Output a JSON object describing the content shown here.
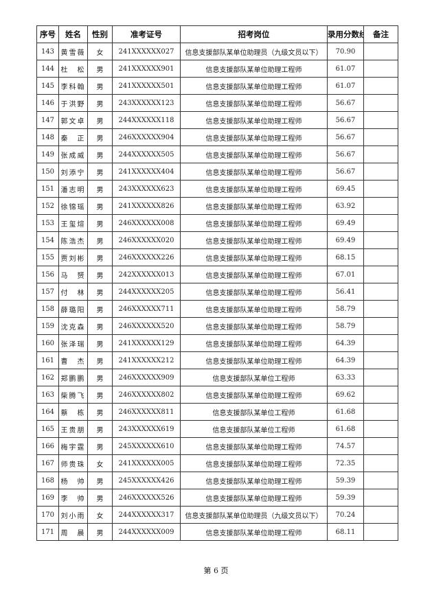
{
  "headers": [
    "序号",
    "姓名",
    "性别",
    "准考证号",
    "招考岗位",
    "录用分数线",
    "备注"
  ],
  "rows": [
    [
      "143",
      "黄雪薇",
      "女",
      "241XXXXXX027",
      "信息支援部队某单位助理员（九级文员以下）",
      "70.90",
      ""
    ],
    [
      "144",
      "杜　松",
      "男",
      "241XXXXXX901",
      "信息支援部队某单位助理工程师",
      "61.07",
      ""
    ],
    [
      "145",
      "李科翰",
      "男",
      "241XXXXXX501",
      "信息支援部队某单位助理工程师",
      "61.07",
      ""
    ],
    [
      "146",
      "于洪野",
      "男",
      "243XXXXXX123",
      "信息支援部队某单位助理工程师",
      "56.67",
      ""
    ],
    [
      "147",
      "郭文卓",
      "男",
      "244XXXXXX118",
      "信息支援部队某单位助理工程师",
      "56.67",
      ""
    ],
    [
      "148",
      "秦　正",
      "男",
      "246XXXXXX904",
      "信息支援部队某单位助理工程师",
      "56.67",
      ""
    ],
    [
      "149",
      "张成威",
      "男",
      "244XXXXXX505",
      "信息支援部队某单位助理工程师",
      "56.67",
      ""
    ],
    [
      "150",
      "刘添宁",
      "男",
      "241XXXXXX404",
      "信息支援部队某单位助理工程师",
      "56.67",
      ""
    ],
    [
      "151",
      "潘志明",
      "男",
      "243XXXXXX623",
      "信息支援部队某单位助理工程师",
      "69.45",
      ""
    ],
    [
      "152",
      "徐锦瑶",
      "男",
      "241XXXXXX826",
      "信息支援部队某单位助理工程师",
      "63.92",
      ""
    ],
    [
      "153",
      "王玺煊",
      "男",
      "246XXXXXX008",
      "信息支援部队某单位助理工程师",
      "69.49",
      ""
    ],
    [
      "154",
      "陈浩杰",
      "男",
      "246XXXXXX020",
      "信息支援部队某单位助理工程师",
      "69.49",
      ""
    ],
    [
      "155",
      "贾刘彬",
      "男",
      "246XXXXXX226",
      "信息支援部队某单位助理工程师",
      "68.15",
      ""
    ],
    [
      "156",
      "马　赟",
      "男",
      "242XXXXXX013",
      "信息支援部队某单位助理工程师",
      "67.01",
      ""
    ],
    [
      "157",
      "付　林",
      "男",
      "244XXXXXX205",
      "信息支援部队某单位助理工程师",
      "56.41",
      ""
    ],
    [
      "158",
      "薛璐阳",
      "男",
      "246XXXXXX711",
      "信息支援部队某单位助理工程师",
      "58.79",
      ""
    ],
    [
      "159",
      "沈克森",
      "男",
      "246XXXXXX520",
      "信息支援部队某单位助理工程师",
      "58.79",
      ""
    ],
    [
      "160",
      "张泽瑞",
      "男",
      "241XXXXXX129",
      "信息支援部队某单位助理工程师",
      "64.39",
      ""
    ],
    [
      "161",
      "曹　杰",
      "男",
      "241XXXXXX212",
      "信息支援部队某单位助理工程师",
      "64.39",
      ""
    ],
    [
      "162",
      "郑鹏鹏",
      "男",
      "246XXXXXX909",
      "信息支援部队某单位工程师",
      "63.33",
      ""
    ],
    [
      "163",
      "柴腾飞",
      "男",
      "246XXXXXX802",
      "信息支援部队某单位助理工程师",
      "69.62",
      ""
    ],
    [
      "164",
      "蔡　栋",
      "男",
      "246XXXXXX811",
      "信息支援部队某单位工程师",
      "61.68",
      ""
    ],
    [
      "165",
      "王贵朋",
      "男",
      "243XXXXXX619",
      "信息支援部队某单位工程师",
      "61.68",
      ""
    ],
    [
      "166",
      "梅宇霆",
      "男",
      "245XXXXXX610",
      "信息支援部队某单位助理工程师",
      "74.57",
      ""
    ],
    [
      "167",
      "师贵珠",
      "女",
      "241XXXXXX005",
      "信息支援部队某单位助理工程师",
      "72.35",
      ""
    ],
    [
      "168",
      "杨　帅",
      "男",
      "245XXXXXX426",
      "信息支援部队某单位助理工程师",
      "59.39",
      ""
    ],
    [
      "169",
      "李　帅",
      "男",
      "246XXXXXX526",
      "信息支援部队某单位助理工程师",
      "59.39",
      ""
    ],
    [
      "170",
      "刘小雨",
      "女",
      "244XXXXXX317",
      "信息支援部队某单位助理员（九级文员以下）",
      "70.24",
      ""
    ],
    [
      "171",
      "周　晨",
      "男",
      "244XXXXXX009",
      "信息支援部队某单位助理工程师",
      "68.11",
      ""
    ]
  ],
  "footer": "第 6 页"
}
